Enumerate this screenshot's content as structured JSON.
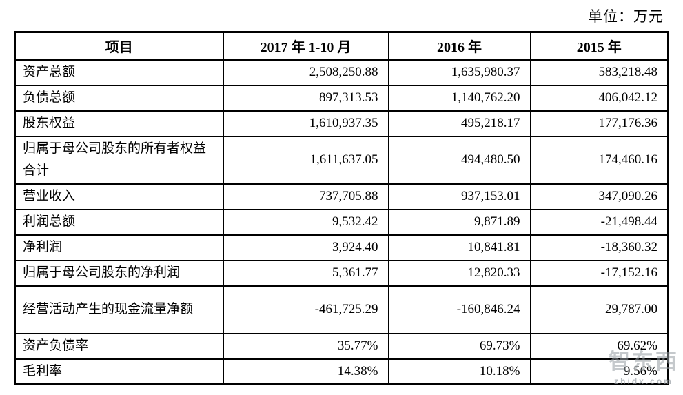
{
  "page": {
    "unit_note": "单位：万元"
  },
  "table": {
    "headers": [
      "项目",
      "2017 年 1-10 月",
      "2016 年",
      "2015 年"
    ],
    "rows": [
      {
        "label": "资产总额",
        "values": [
          "2,508,250.88",
          "1,635,980.37",
          "583,218.48"
        ]
      },
      {
        "label": "负债总额",
        "values": [
          "897,313.53",
          "1,140,762.20",
          "406,042.12"
        ]
      },
      {
        "label": "股东权益",
        "values": [
          "1,610,937.35",
          "495,218.17",
          "177,176.36"
        ]
      },
      {
        "label": "归属于母公司股东的所有者权益合计",
        "values": [
          "1,611,637.05",
          "494,480.50",
          "174,460.16"
        ]
      },
      {
        "label": "营业收入",
        "values": [
          "737,705.88",
          "937,153.01",
          "347,090.26"
        ]
      },
      {
        "label": "利润总额",
        "values": [
          "9,532.42",
          "9,871.89",
          "-21,498.44"
        ]
      },
      {
        "label": "净利润",
        "values": [
          "3,924.40",
          "10,841.81",
          "-18,360.32"
        ]
      },
      {
        "label": "归属于母公司股东的净利润",
        "values": [
          "5,361.77",
          "12,820.33",
          "-17,152.16"
        ]
      },
      {
        "label": "经营活动产生的现金流量净额",
        "values": [
          "-461,725.29",
          "-160,846.24",
          "29,787.00"
        ]
      },
      {
        "label": "资产负债率",
        "values": [
          "35.77%",
          "69.73%",
          "69.62%"
        ]
      },
      {
        "label": "毛利率",
        "values": [
          "14.38%",
          "10.18%",
          "9.56%"
        ]
      }
    ]
  },
  "watermark": {
    "logo": "智东西",
    "site": "zhidx.com"
  },
  "colors": {
    "background": "#ffffff",
    "border": "#000000",
    "text": "#000000",
    "watermark": "#969ca2"
  }
}
